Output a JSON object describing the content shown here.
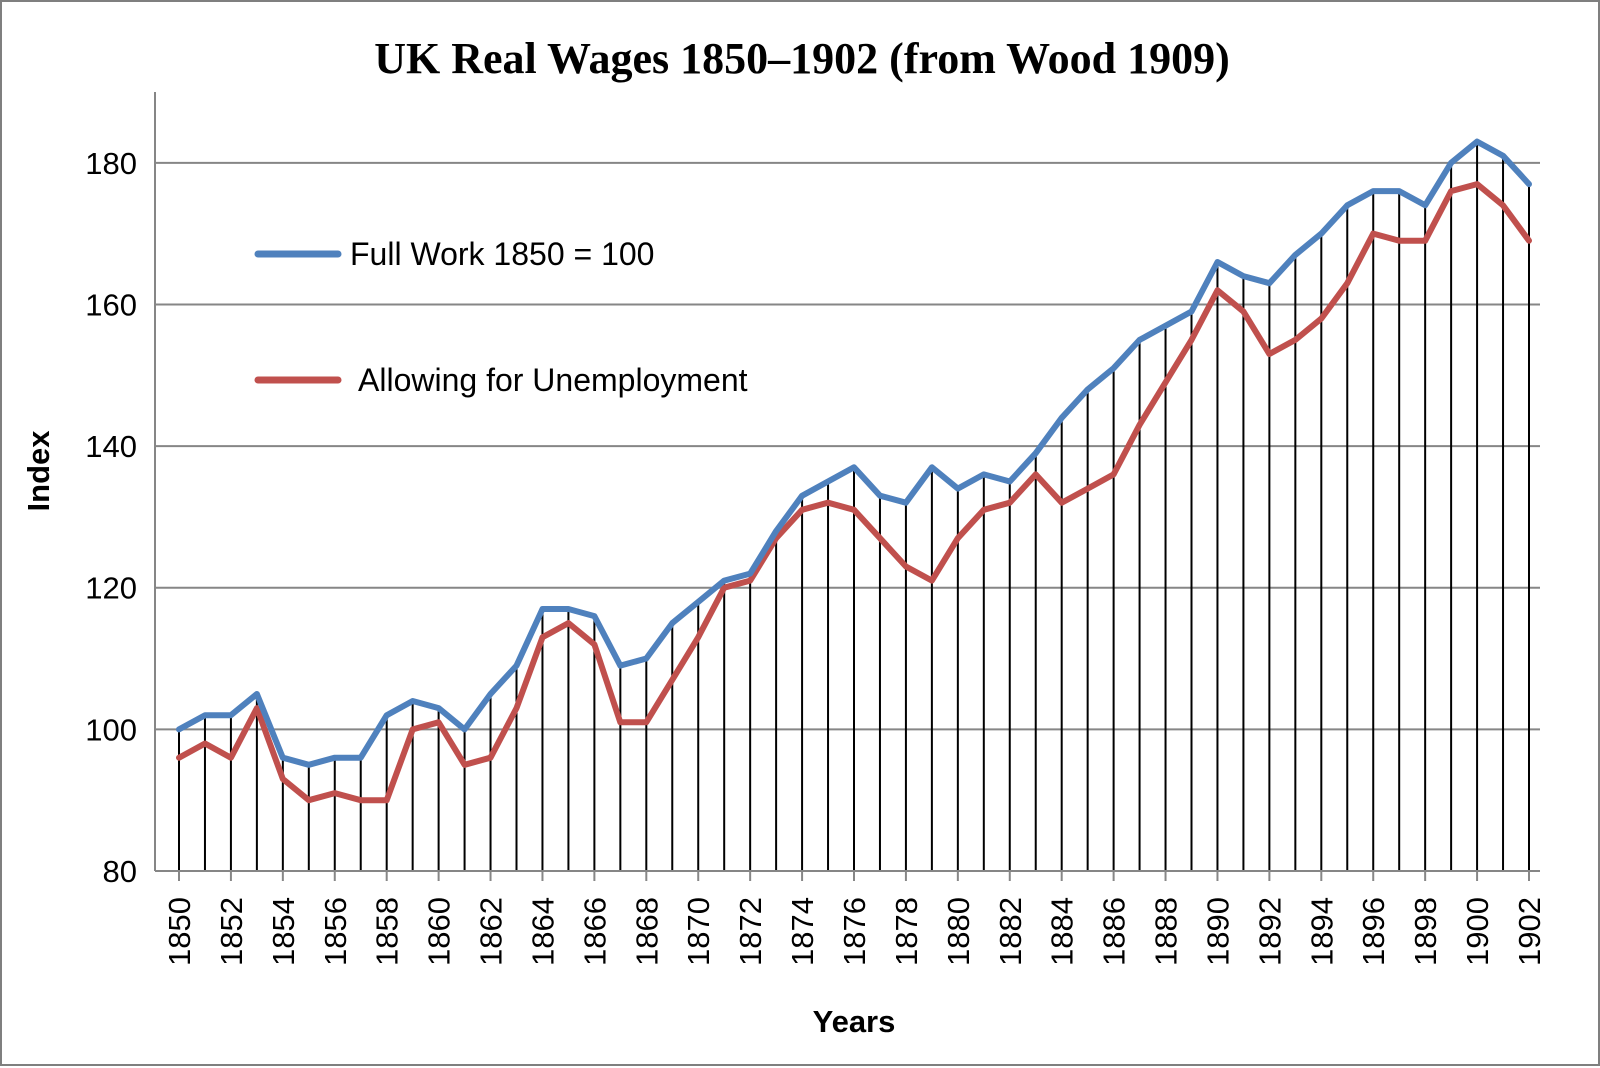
{
  "chart_data": {
    "type": "line",
    "title": "UK Real Wages 1850–1902 (from Wood 1909)",
    "xlabel": "Years",
    "ylabel": "Index",
    "ylim": [
      80,
      190
    ],
    "yticks": [
      "80",
      "100",
      "120",
      "140",
      "160",
      "180"
    ],
    "x": [
      1850,
      1851,
      1852,
      1853,
      1854,
      1855,
      1856,
      1857,
      1858,
      1859,
      1860,
      1861,
      1862,
      1863,
      1864,
      1865,
      1866,
      1867,
      1868,
      1869,
      1870,
      1871,
      1872,
      1873,
      1874,
      1875,
      1876,
      1877,
      1878,
      1879,
      1880,
      1881,
      1882,
      1883,
      1884,
      1885,
      1886,
      1887,
      1888,
      1889,
      1890,
      1891,
      1892,
      1893,
      1894,
      1895,
      1896,
      1897,
      1898,
      1899,
      1900,
      1901,
      1902
    ],
    "xtick_labels": [
      "1850",
      "1852",
      "1854",
      "1856",
      "1858",
      "1860",
      "1862",
      "1864",
      "1866",
      "1868",
      "1870",
      "1872",
      "1874",
      "1876",
      "1878",
      "1880",
      "1882",
      "1884",
      "1886",
      "1888",
      "1890",
      "1892",
      "1894",
      "1896",
      "1898",
      "1900",
      "1902"
    ],
    "grid": "horizontal",
    "drop_lines": true,
    "legend_position": "upper-left",
    "series": [
      {
        "name": "Full Work 1850 = 100",
        "color": "#4f81bd",
        "values": [
          100,
          102,
          102,
          105,
          96,
          95,
          96,
          96,
          102,
          104,
          103,
          100,
          105,
          109,
          117,
          117,
          116,
          109,
          110,
          115,
          118,
          121,
          122,
          128,
          133,
          135,
          137,
          133,
          132,
          137,
          134,
          136,
          135,
          139,
          144,
          148,
          151,
          155,
          157,
          159,
          166,
          164,
          163,
          167,
          170,
          174,
          176,
          176,
          174,
          180,
          183,
          181,
          177
        ]
      },
      {
        "name": "Allowing for Unemployment",
        "color": "#c0504d",
        "values": [
          96,
          98,
          96,
          103,
          93,
          90,
          91,
          90,
          90,
          100,
          101,
          95,
          96,
          103,
          113,
          115,
          112,
          101,
          101,
          107,
          113,
          120,
          121,
          127,
          131,
          132,
          131,
          127,
          123,
          121,
          127,
          131,
          132,
          136,
          132,
          134,
          136,
          143,
          149,
          155,
          162,
          159,
          153,
          155,
          158,
          163,
          170,
          169,
          169,
          176,
          177,
          174,
          169
        ]
      }
    ]
  }
}
